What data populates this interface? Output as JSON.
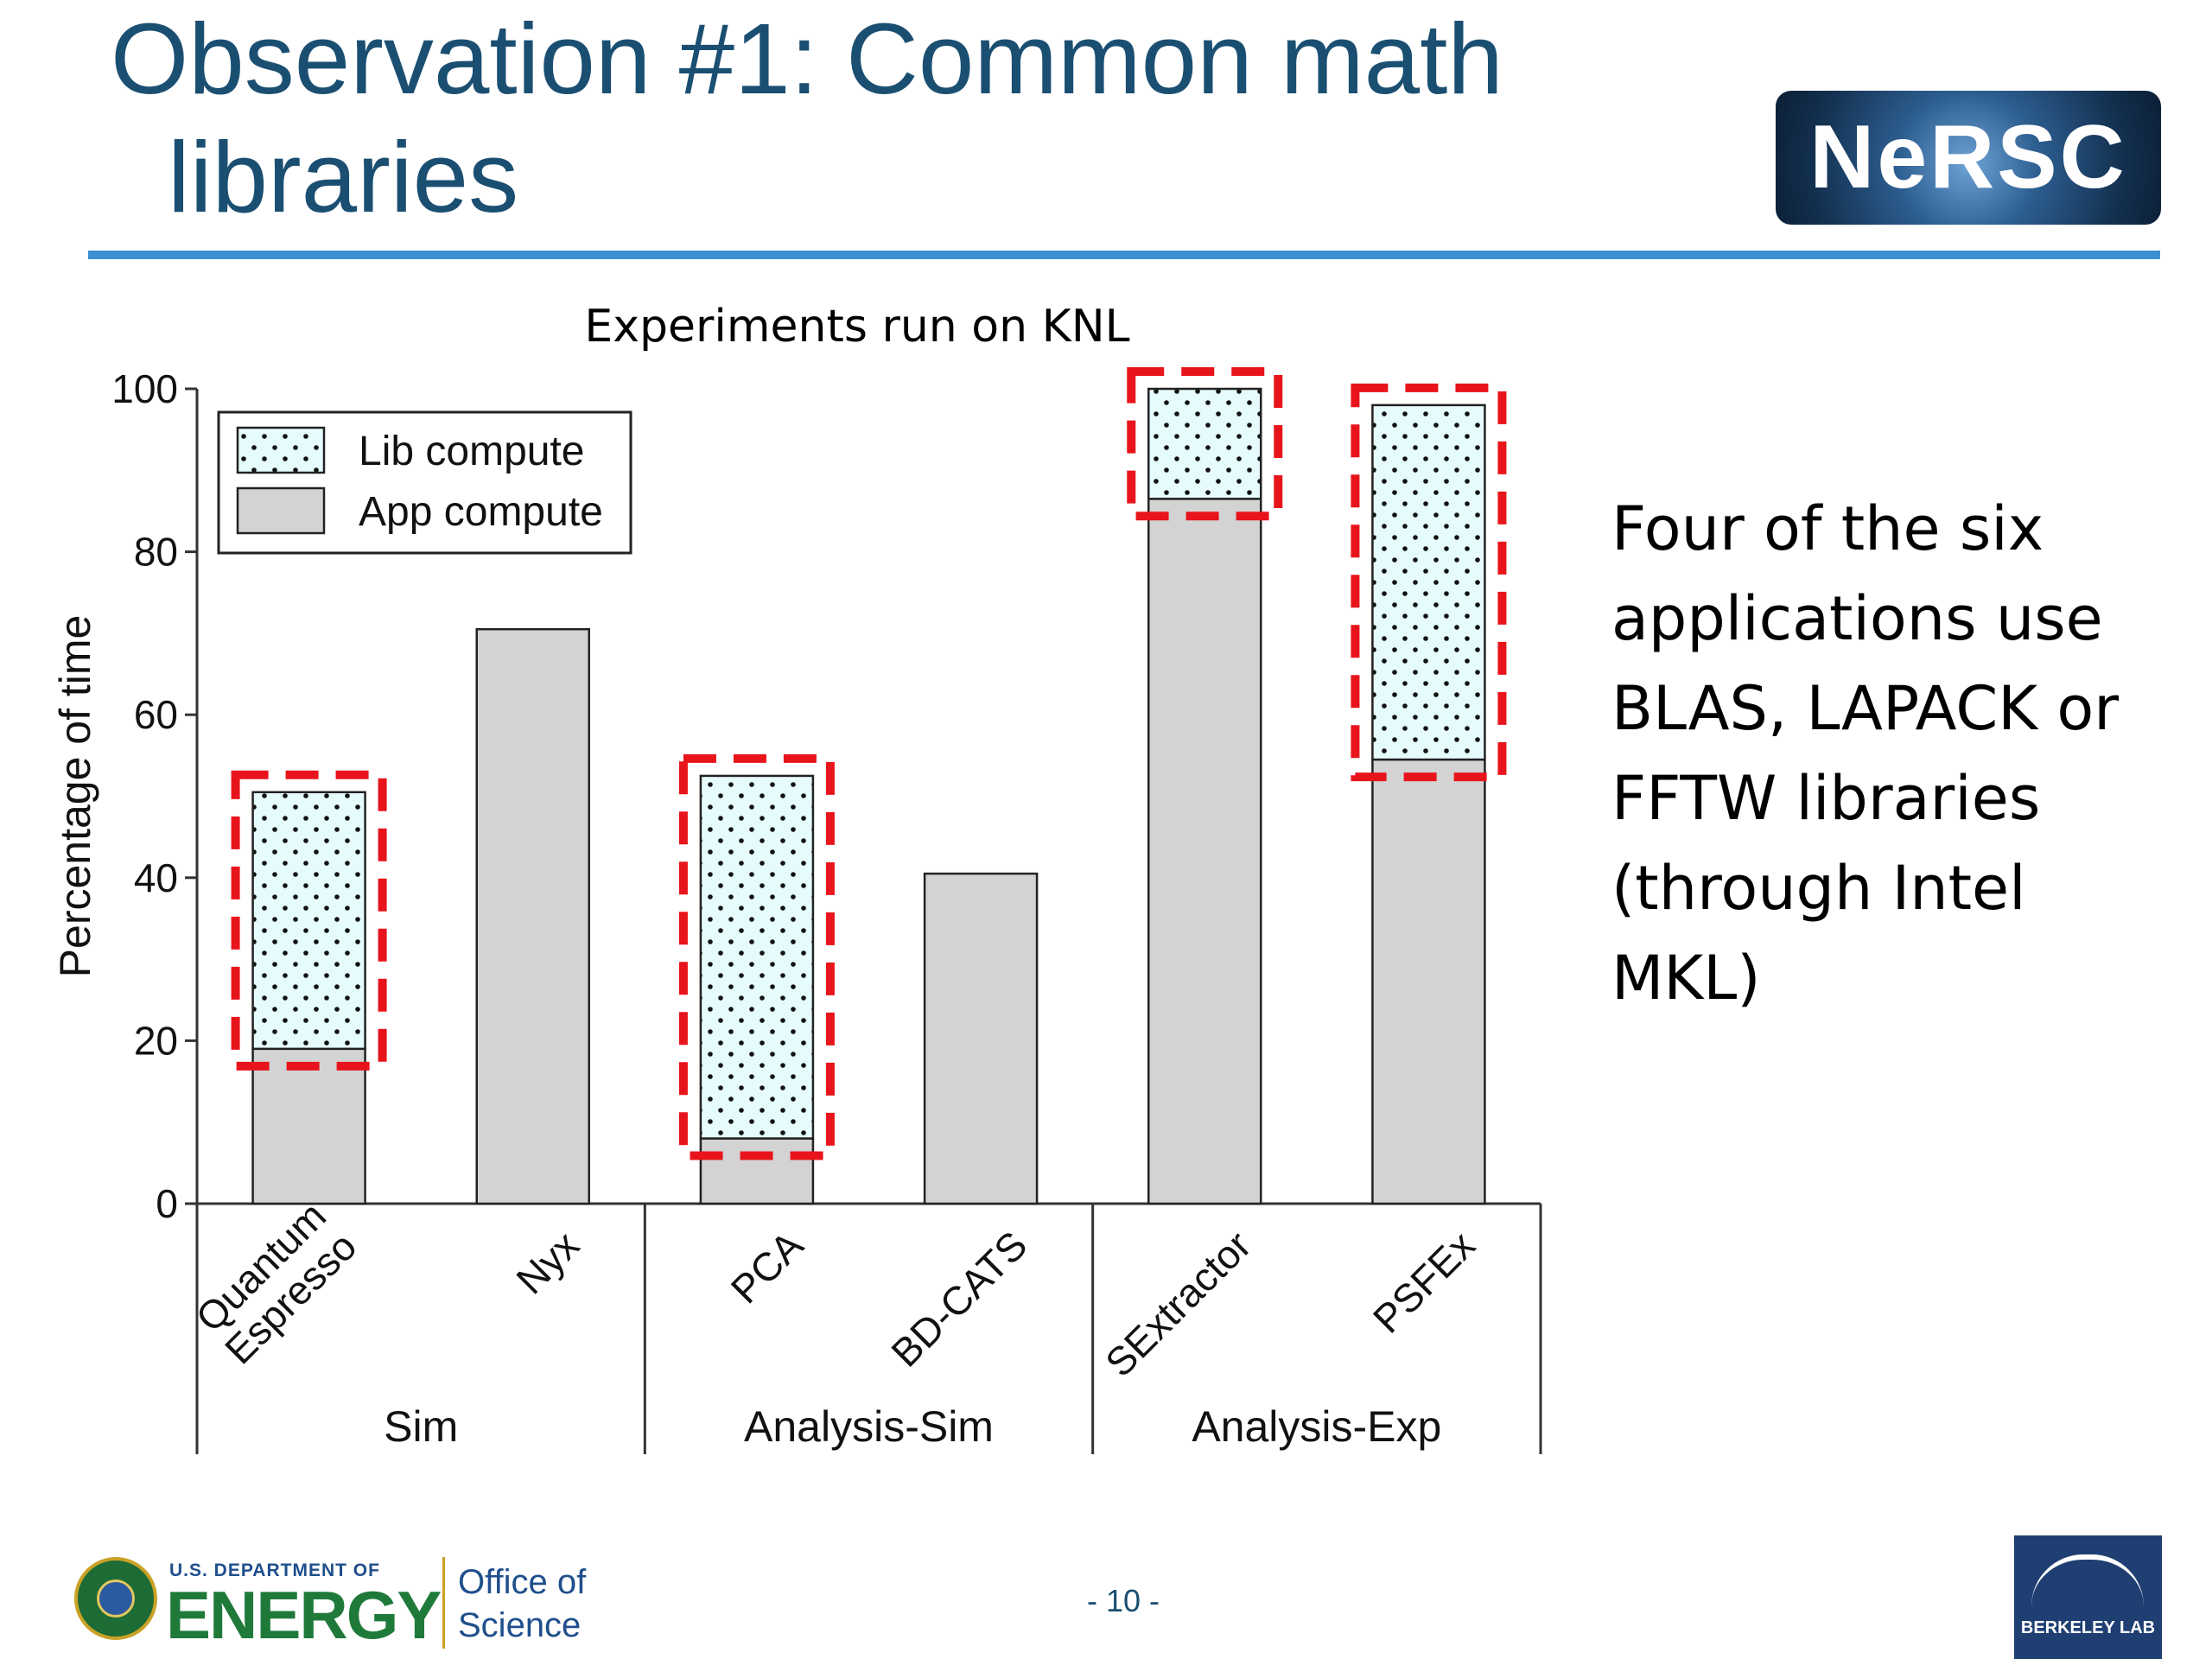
{
  "slide": {
    "title_line1": "Observation #1: Common math",
    "title_line2": "libraries",
    "logo_nersc": "NeRSC",
    "note_lines": [
      "Four of the six",
      "applications use",
      "BLAS, LAPACK or",
      "FFTW libraries",
      "(through Intel",
      "MKL)"
    ],
    "footer": {
      "doe_dept": "U.S. DEPARTMENT OF",
      "doe_energy": "ENERGY",
      "office_line1": "Office of",
      "office_line2": "Science",
      "page_number": "- 10 -",
      "lab_name": "BERKELEY LAB"
    }
  },
  "chart_data": {
    "type": "bar",
    "stacked": true,
    "title": "Experiments run on KNL",
    "ylabel": "Percentage of time",
    "xlabel": "",
    "ylim": [
      0,
      100
    ],
    "yticks": [
      0,
      20,
      40,
      60,
      80,
      100
    ],
    "categories": [
      "Quantum Espresso",
      "Nyx",
      "PCA",
      "BD-CATS",
      "SExtractor",
      "PSFEx"
    ],
    "category_label_lines": [
      [
        "Quantum",
        "Espresso"
      ],
      [
        "Nyx"
      ],
      [
        "PCA"
      ],
      [
        "BD-CATS"
      ],
      [
        "SExtractor"
      ],
      [
        "PSFEx"
      ]
    ],
    "groups": [
      {
        "name": "Sim",
        "categories": [
          "Quantum Espresso",
          "Nyx"
        ]
      },
      {
        "name": "Analysis-Sim",
        "categories": [
          "PCA",
          "BD-CATS"
        ]
      },
      {
        "name": "Analysis-Exp",
        "categories": [
          "SExtractor",
          "PSFEx"
        ]
      }
    ],
    "series": [
      {
        "name": "App compute",
        "values": [
          19,
          70.5,
          8,
          40.5,
          86.5,
          54.5
        ],
        "color": "#d3d3d3"
      },
      {
        "name": "Lib compute",
        "values": [
          31.5,
          0,
          44.5,
          0,
          13.5,
          43.5
        ],
        "color": "#e6fbfb",
        "pattern": "dots"
      }
    ],
    "highlighted": [
      "Quantum Espresso",
      "PCA",
      "SExtractor",
      "PSFEx"
    ],
    "highlight_color": "#e8141b",
    "legend_position": "top-left",
    "grid": false
  }
}
